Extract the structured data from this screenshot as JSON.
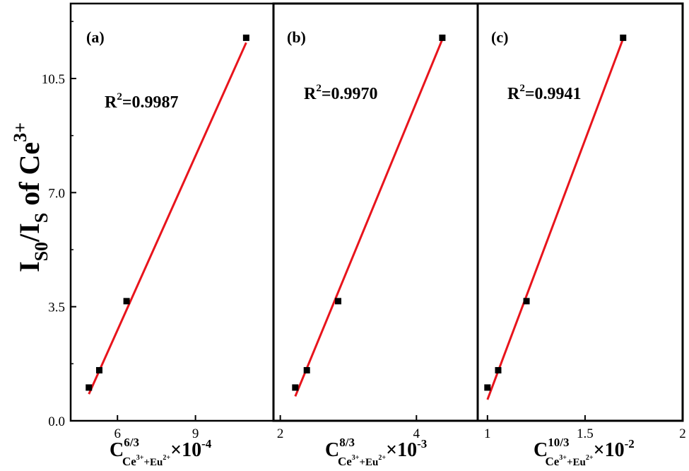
{
  "chart_data": [
    {
      "type": "scatter",
      "panel_label": "(a)",
      "annotation": {
        "prefix": "R",
        "sup": "2",
        "value": "=0.9987"
      },
      "xlabel": {
        "main": "C",
        "sup": "6/3",
        "sub_ce": "Ce",
        "sub_ce_sup": "3+",
        "sub_mid": "+Eu",
        "sub_eu_sup": "2+",
        "suffix": "×10",
        "exp": "-4"
      },
      "xlim": [
        4.2,
        12.0
      ],
      "x_ticks": [
        6,
        9
      ],
      "ylim": [
        0,
        12.8
      ],
      "y_ticks": [
        0.0,
        3.5,
        7.0,
        10.5
      ],
      "y_tick_labels": [
        "0.0",
        "3.5",
        "7.0",
        "10.5"
      ],
      "series": [
        {
          "x": [
            4.9,
            5.3,
            6.35,
            10.95
          ],
          "y": [
            1.02,
            1.55,
            3.67,
            11.75
          ]
        }
      ],
      "fit": {
        "x": [
          4.9,
          10.95
        ],
        "y": [
          0.82,
          11.6
        ]
      },
      "colors": {
        "points": "#000000",
        "fit": "#e8141c"
      }
    },
    {
      "type": "scatter",
      "panel_label": "(b)",
      "annotation": {
        "prefix": "R",
        "sup": "2",
        "value": "=0.9970"
      },
      "xlabel": {
        "main": "C",
        "sup": "8/3",
        "sub_ce": "Ce",
        "sub_ce_sup": "3+",
        "sub_mid": "+Eu",
        "sub_eu_sup": "2+",
        "suffix": "×10",
        "exp": "-3"
      },
      "xlim": [
        1.9,
        4.9
      ],
      "x_ticks": [
        2,
        4
      ],
      "ylim": [
        0,
        12.8
      ],
      "series": [
        {
          "x": [
            2.22,
            2.39,
            2.85,
            4.38
          ],
          "y": [
            1.02,
            1.55,
            3.67,
            11.75
          ]
        }
      ],
      "fit": {
        "x": [
          2.22,
          4.38
        ],
        "y": [
          0.75,
          11.7
        ]
      },
      "colors": {
        "points": "#000000",
        "fit": "#e8141c"
      }
    },
    {
      "type": "scatter",
      "panel_label": "(c)",
      "annotation": {
        "prefix": "R",
        "sup": "2",
        "value": "=0.9941"
      },
      "xlabel": {
        "main": "C",
        "sup": "10/3",
        "sub_ce": "Ce",
        "sub_ce_sup": "3+",
        "sub_mid": "+Eu",
        "sub_eu_sup": "2+",
        "suffix": "×10",
        "exp": "-2"
      },
      "xlim": [
        0.95,
        2.0
      ],
      "x_ticks": [
        1,
        1.5,
        2
      ],
      "ylim": [
        0,
        12.8
      ],
      "series": [
        {
          "x": [
            1.0,
            1.055,
            1.2,
            1.695
          ],
          "y": [
            1.02,
            1.55,
            3.67,
            11.75
          ]
        }
      ],
      "fit": {
        "x": [
          1.0,
          1.695
        ],
        "y": [
          0.65,
          11.72
        ]
      },
      "colors": {
        "points": "#000000",
        "fit": "#e8141c"
      }
    }
  ],
  "ylabel": {
    "a": "I",
    "a_sub": "S0",
    "b": "/I",
    "b_sub": "S",
    "c": " of Ce",
    "c_sup": "3+"
  }
}
